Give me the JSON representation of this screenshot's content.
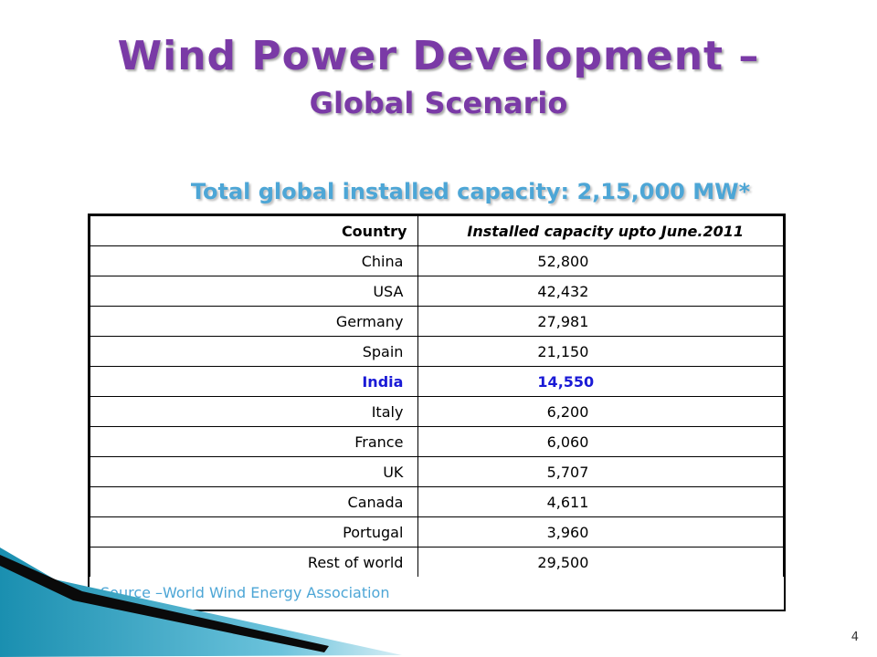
{
  "slide": {
    "title_line1": "Wind Power Development –",
    "title_line2": "Global Scenario",
    "subtitle": "Total global installed capacity: 2,15,000 MW*",
    "page_number": "4",
    "source": "Source –World Wind Energy Association"
  },
  "table": {
    "headers": [
      "Country",
      "Installed capacity upto June.2011"
    ],
    "rows": [
      {
        "country": "China",
        "value": "52,800"
      },
      {
        "country": "USA",
        "value": "42,432"
      },
      {
        "country": "Germany",
        "value": "27,981"
      },
      {
        "country": "Spain",
        "value": "21,150"
      },
      {
        "country": "India",
        "value": "14,550",
        "highlight": true
      },
      {
        "country": "Italy",
        "value": "  6,200"
      },
      {
        "country": "France",
        "value": "  6,060"
      },
      {
        "country": "UK",
        "value": "  5,707"
      },
      {
        "country": "Canada",
        "value": "  4,611"
      },
      {
        "country": "Portugal",
        "value": "  3,960"
      },
      {
        "country": "Rest of world",
        "value": "29,500"
      }
    ]
  },
  "colors": {
    "title": "#7a3aa6",
    "subtitle": "#4da6d6",
    "highlight_row": "#1a1ad6",
    "source_text": "#4da6d6"
  }
}
